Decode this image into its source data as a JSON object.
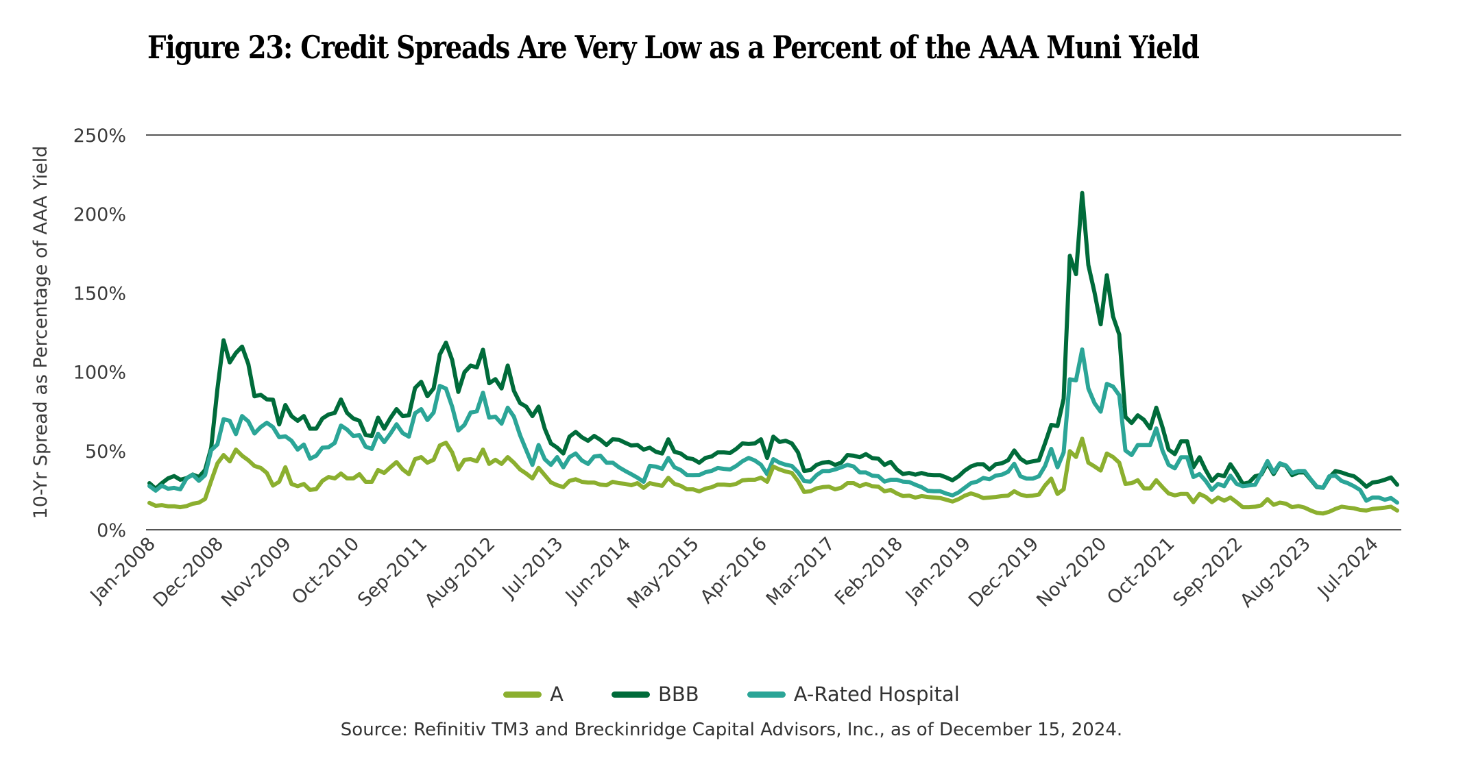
{
  "chart_data": {
    "type": "line",
    "title": "Figure 23: Credit Spreads Are Very Low as a Percent of the AAA Muni Yield",
    "xlabel": "",
    "ylabel": "10-Yr Spread as Percentage of AAA Yield",
    "ylim": [
      0,
      250
    ],
    "y_ticks": [
      0,
      50,
      100,
      150,
      200,
      250
    ],
    "y_tick_labels": [
      "0%",
      "50%",
      "100%",
      "150%",
      "200%",
      "250%"
    ],
    "grid": "horizontal lines at 0% and 250% only",
    "x_start": "Jan-2008",
    "x_end": "Dec-2024",
    "x_frequency": "monthly",
    "x_tick_labels": [
      "Jan-2008",
      "Dec-2008",
      "Nov-2009",
      "Oct-2010",
      "Sep-2011",
      "Aug-2012",
      "Jul-2013",
      "Jun-2014",
      "May-2015",
      "Apr-2016",
      "Mar-2017",
      "Feb-2018",
      "Jan-2019",
      "Dec-2019",
      "Nov-2020",
      "Oct-2021",
      "Sep-2022",
      "Aug-2023",
      "Jul-2024"
    ],
    "x_tick_interval_months": 11,
    "legend_position": "bottom-center",
    "series": [
      {
        "name": "A",
        "color": "#8BAF2F",
        "values": [
          17,
          15.2,
          15.6,
          14.9,
          14.9,
          14.3,
          15,
          16.5,
          17.2,
          19.5,
          31,
          42,
          47.3,
          43.3,
          50.8,
          46.9,
          44,
          40.4,
          39.2,
          36,
          28,
          30.4,
          39.6,
          29,
          27.6,
          29,
          25.2,
          25.8,
          31,
          33.4,
          32.5,
          35.6,
          32.5,
          32.5,
          35.2,
          30.4,
          30.4,
          37.8,
          36,
          39.6,
          42.9,
          38.2,
          35.2,
          44.7,
          46,
          42.5,
          44.3,
          53.4,
          55.1,
          49,
          38.2,
          44.3,
          44.7,
          43.4,
          50.8,
          41.7,
          44.3,
          41.7,
          46,
          42.5,
          38.2,
          35.6,
          32.5,
          39.2,
          34.6,
          30,
          28.2,
          27,
          31,
          32,
          30.4,
          29.9,
          29.9,
          28.6,
          28.2,
          30.4,
          29.5,
          29.1,
          28.2,
          29.5,
          26.5,
          29.5,
          28.6,
          27.8,
          32.9,
          29.1,
          27.8,
          25.6,
          25.6,
          24.3,
          26,
          26.9,
          28.6,
          28.6,
          28.2,
          29.1,
          31.3,
          31.7,
          31.7,
          33,
          30.4,
          40,
          38.2,
          36.9,
          36,
          30.8,
          23.9,
          24.4,
          26.2,
          27,
          27.3,
          25.6,
          26.6,
          29.5,
          29.5,
          27.6,
          29.1,
          27.6,
          27.3,
          24.4,
          25.2,
          23,
          21.3,
          21.6,
          20.4,
          21.3,
          20.8,
          20.4,
          20.1,
          19,
          17.9,
          19.4,
          21.6,
          23,
          21.8,
          20.1,
          20.4,
          20.8,
          21.3,
          21.6,
          24.4,
          22.3,
          21.3,
          21.6,
          22.3,
          28.1,
          32.4,
          22.7,
          25.6,
          49.8,
          46.1,
          57.7,
          42.5,
          40.1,
          37.5,
          48.3,
          46.1,
          42.5,
          29.1,
          29.5,
          31.4,
          26.2,
          26.2,
          31.4,
          27,
          23,
          21.8,
          22.7,
          22.7,
          17.5,
          22.7,
          20.8,
          17.5,
          20.4,
          18.4,
          20.4,
          17.5,
          14.3,
          14.3,
          14.6,
          15.5,
          19.4,
          15.8,
          17.2,
          16.5,
          14.3,
          15,
          14,
          12.2,
          10.7,
          10.3,
          11.4,
          13.2,
          14.6,
          14,
          13.6,
          12.6,
          12.2,
          13.2,
          13.6,
          14,
          14.6,
          12.2
        ]
      },
      {
        "name": "BBB",
        "color": "#006B3A",
        "values": [
          29.5,
          26,
          29.5,
          32.5,
          34,
          31.7,
          32.7,
          35,
          33.4,
          37.8,
          52,
          89,
          120,
          106,
          112,
          116,
          105,
          84.5,
          85.5,
          82.6,
          82.4,
          66.7,
          79,
          72,
          69,
          72,
          64,
          64,
          70.5,
          73,
          74,
          82.5,
          74,
          70.5,
          69,
          60,
          59.4,
          71,
          64,
          70.7,
          76.4,
          72,
          72.5,
          89.8,
          93.7,
          84.6,
          89.5,
          111,
          118.5,
          107.6,
          87.3,
          99.8,
          104,
          102.8,
          114,
          92.8,
          95.4,
          89.5,
          104,
          88,
          80.2,
          78,
          72,
          78,
          64,
          54.7,
          52,
          48.3,
          59,
          62,
          58.6,
          56.4,
          59.4,
          57,
          53.7,
          57.3,
          57,
          55.1,
          53.4,
          53.7,
          50.8,
          52,
          49.4,
          48.3,
          57.3,
          49.4,
          48.3,
          45.5,
          44.7,
          42.5,
          45.5,
          46.4,
          49,
          49,
          48.6,
          51.2,
          54.7,
          54.3,
          54.7,
          57.3,
          45.5,
          59,
          55.6,
          56.4,
          54.7,
          49,
          37.3,
          37.8,
          41.1,
          42.5,
          43,
          41.1,
          42.5,
          47.3,
          46.9,
          45.9,
          47.9,
          45.4,
          45,
          41.1,
          43,
          38.2,
          35.3,
          36,
          34.9,
          36,
          34.9,
          34.6,
          34.6,
          33.1,
          31.4,
          33.9,
          37.5,
          40.1,
          41.5,
          41.5,
          38.2,
          41.5,
          42.1,
          44,
          50.2,
          45,
          42.5,
          43.3,
          44,
          54.8,
          66.4,
          65.7,
          83,
          173.5,
          161.9,
          213.3,
          167.7,
          150.3,
          130.1,
          161.2,
          135.1,
          123.6,
          71.5,
          67.6,
          72.5,
          69.6,
          64.2,
          77.3,
          65,
          50.8,
          47.9,
          56,
          56,
          39.6,
          45.9,
          37.8,
          30.9,
          34.9,
          33.9,
          41.5,
          35.7,
          29.1,
          29.9,
          33.9,
          34.9,
          42.1,
          35.3,
          41.8,
          40.4,
          34.6,
          36.3,
          36.3,
          31.7,
          27,
          26.6,
          33.1,
          37.2,
          36.3,
          34.9,
          33.9,
          30.9,
          27.3,
          29.9,
          30.5,
          31.7,
          33.1,
          28.5
        ]
      },
      {
        "name": "A-Rated Hospital",
        "color": "#2BA597",
        "values": [
          27.7,
          24.8,
          28,
          26,
          26.5,
          25.6,
          32.5,
          34.8,
          31,
          34.6,
          50.4,
          54,
          70,
          69,
          60.6,
          72,
          68.6,
          61,
          65,
          67.8,
          65,
          58.6,
          59.2,
          56.4,
          50.8,
          54,
          45,
          46.9,
          52,
          52.3,
          55,
          66,
          63.4,
          59.4,
          59.9,
          52.6,
          51.2,
          60.8,
          55.5,
          60.8,
          66.8,
          61.2,
          59,
          73.8,
          76.4,
          69.5,
          74.2,
          91.1,
          89.4,
          78,
          62.9,
          66.4,
          74.2,
          75,
          86.8,
          71,
          71.6,
          67.2,
          77.3,
          71.6,
          59.9,
          50.4,
          41.1,
          53.7,
          44.7,
          41.1,
          46,
          39.6,
          46,
          48.3,
          43.9,
          41.7,
          46.4,
          46.9,
          42.5,
          42.5,
          39.6,
          37.3,
          35.2,
          33,
          30.4,
          40.4,
          40,
          38.6,
          45.5,
          39.6,
          37.8,
          34.7,
          34.6,
          34.7,
          36.4,
          37.3,
          39.1,
          38.6,
          38.2,
          40.4,
          43.4,
          45.5,
          43.9,
          41.2,
          35.2,
          44.7,
          42.5,
          41.2,
          40.4,
          36.4,
          30.8,
          30.5,
          34.6,
          37.2,
          37.2,
          38.2,
          39.6,
          41.1,
          40.1,
          36.3,
          36.3,
          34.3,
          33.9,
          30.5,
          31.7,
          31.7,
          30.5,
          30.2,
          28.5,
          27,
          24.7,
          24.4,
          24.4,
          22.9,
          21.8,
          23.7,
          26.6,
          29.5,
          30.5,
          32.8,
          32,
          34.3,
          34.9,
          36.7,
          41.8,
          33.9,
          32.4,
          32.4,
          33.9,
          40.4,
          51.2,
          39.6,
          49,
          95.3,
          94.6,
          114.2,
          89.5,
          80.2,
          74.8,
          92.4,
          90.7,
          85.2,
          50.2,
          47.3,
          53.7,
          53.7,
          53.7,
          64.2,
          50.2,
          41.1,
          38.9,
          45.9,
          45.9,
          33.4,
          35.3,
          30.9,
          25.2,
          29.1,
          27.6,
          34.3,
          29.1,
          27.6,
          28.1,
          28.5,
          35.7,
          43.5,
          36.3,
          42.1,
          40.7,
          36,
          37.2,
          37.2,
          32,
          27.3,
          26.6,
          33.9,
          34.3,
          30.9,
          29.5,
          27.6,
          25.2,
          18.4,
          20.4,
          20.4,
          19,
          20.1,
          17.2
        ]
      }
    ]
  },
  "legend": {
    "items": [
      {
        "label": "A",
        "color": "#8BAF2F"
      },
      {
        "label": "BBB",
        "color": "#006B3A"
      },
      {
        "label": "A-Rated Hospital",
        "color": "#2BA597"
      }
    ]
  },
  "source": "Source: Refinitiv TM3 and Breckinridge Capital Advisors, Inc., as of December 15, 2024."
}
